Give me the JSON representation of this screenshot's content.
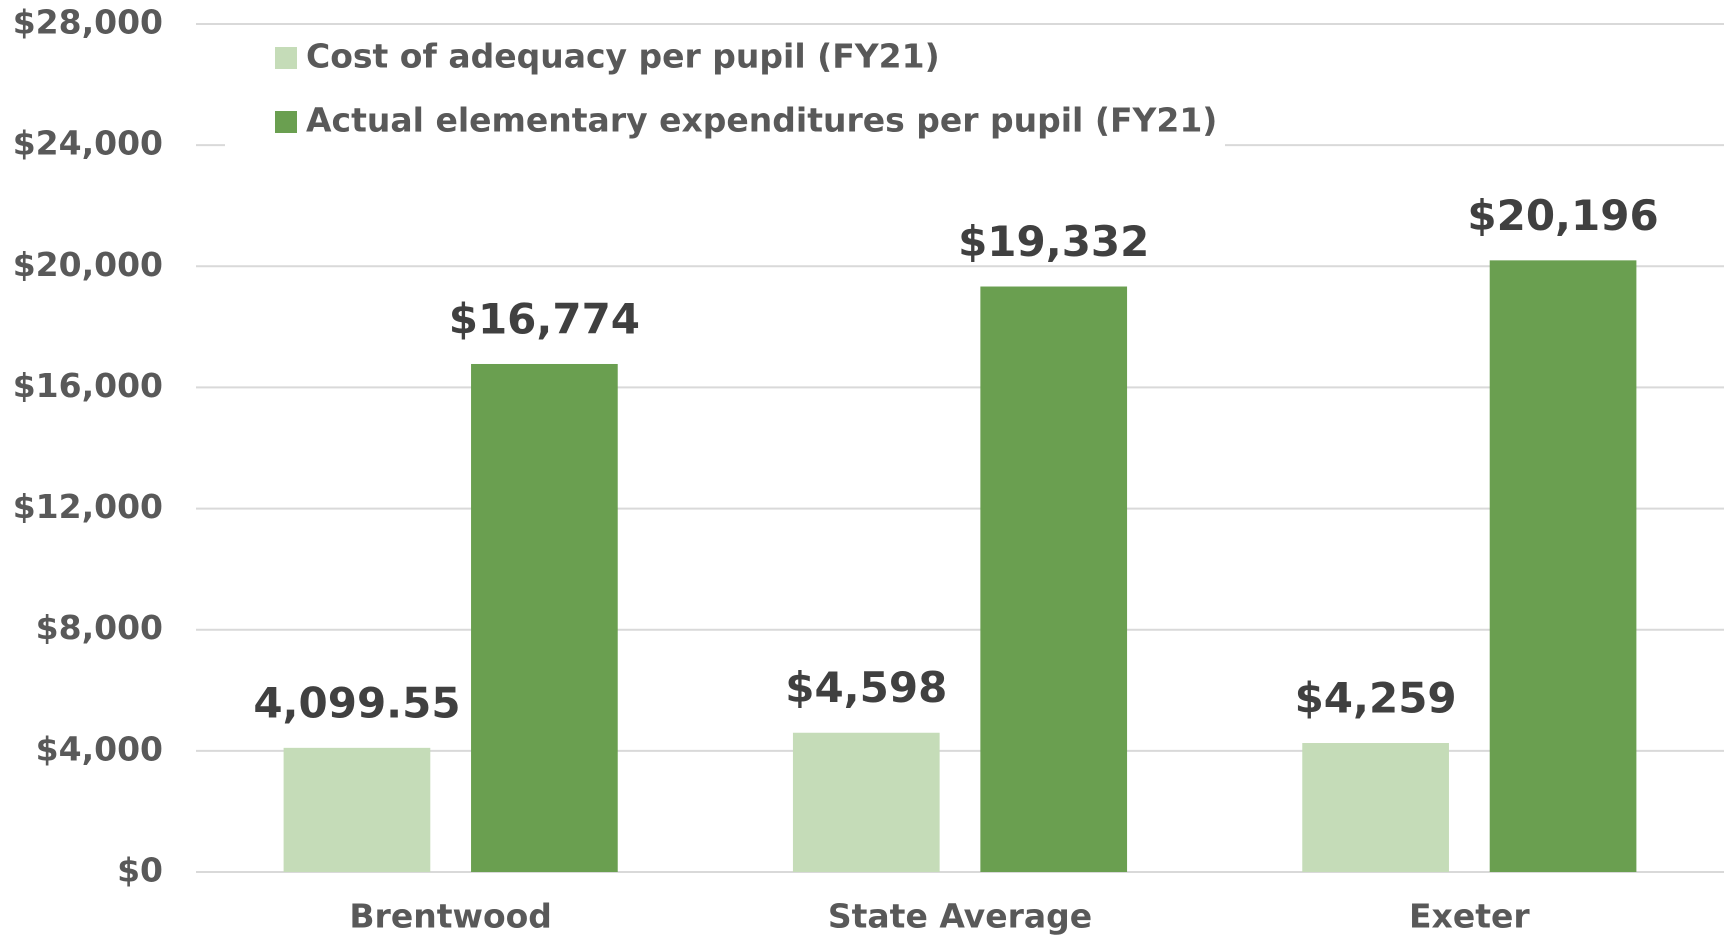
{
  "chart_data": {
    "type": "bar",
    "categories": [
      "Brentwood",
      "State Average",
      "Exeter"
    ],
    "series": [
      {
        "name": "Cost of adequacy per pupil (FY21)",
        "color": "#c5dcb8",
        "values": [
          4099.55,
          4598,
          4259
        ],
        "value_labels": [
          "4,099.55",
          "$4,598",
          "$4,259"
        ]
      },
      {
        "name": "Actual elementary expenditures per pupil (FY21)",
        "color": "#6a9f50",
        "values": [
          16774,
          19332,
          20196
        ],
        "value_labels": [
          "$16,774",
          "$19,332",
          "$20,196"
        ]
      }
    ],
    "ylim": [
      0,
      28000
    ],
    "yticks": [
      {
        "value": 0,
        "label": "$0"
      },
      {
        "value": 4000,
        "label": "$4,000"
      },
      {
        "value": 8000,
        "label": "$8,000"
      },
      {
        "value": 12000,
        "label": "$12,000"
      },
      {
        "value": 16000,
        "label": "$16,000"
      },
      {
        "value": 20000,
        "label": "$20,000"
      },
      {
        "value": 24000,
        "label": "$24,000"
      },
      {
        "value": 28000,
        "label": "$28,000"
      }
    ],
    "grid": true,
    "legend": "upper left"
  }
}
